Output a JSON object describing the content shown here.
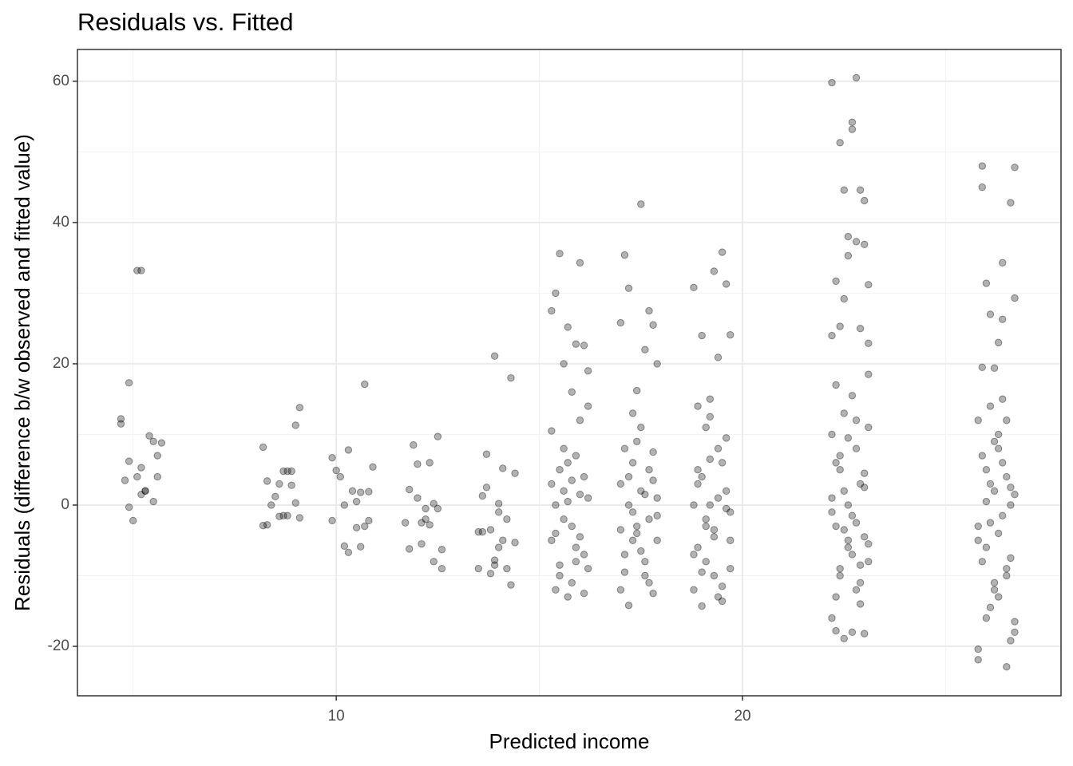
{
  "chart_data": {
    "type": "scatter",
    "title": "Residuals vs. Fitted",
    "x_label": "Predicted income",
    "y_label": "Residuals (difference b/w observed and fitted value)",
    "xlim": [
      3.63,
      27.84
    ],
    "ylim": [
      -27.0,
      64.5
    ],
    "xticks": [
      10,
      20
    ],
    "yticks": [
      -20,
      0,
      20,
      40,
      60
    ],
    "minor_xgrid": [
      5,
      15,
      25
    ],
    "minor_ygrid": [
      -10,
      10,
      30,
      50
    ],
    "grid": true,
    "color": "#000000",
    "alpha": 0.3,
    "x": [
      4.7,
      4.7,
      4.9,
      5.1,
      5.2,
      5.3,
      5.4,
      5.5,
      5.6,
      5.7,
      4.8,
      4.9,
      5.0,
      5.1,
      5.2,
      5.3,
      5.5,
      5.6,
      5.2,
      4.9,
      8.2,
      8.3,
      8.3,
      8.5,
      8.6,
      8.7,
      8.8,
      8.9,
      9.0,
      9.1,
      8.2,
      8.4,
      8.6,
      8.8,
      9.0,
      9.1,
      8.7,
      8.9,
      9.9,
      10.0,
      10.1,
      10.3,
      10.4,
      10.5,
      10.6,
      10.7,
      10.8,
      10.9,
      9.9,
      10.2,
      10.3,
      10.5,
      10.6,
      10.8,
      10.2,
      10.7,
      11.7,
      11.8,
      11.9,
      12.0,
      12.1,
      12.2,
      12.3,
      12.4,
      12.5,
      12.6,
      11.8,
      12.0,
      12.2,
      12.3,
      12.5,
      12.6,
      12.1,
      12.4,
      13.5,
      13.6,
      13.7,
      13.8,
      13.9,
      14.0,
      14.1,
      14.2,
      14.3,
      14.4,
      13.6,
      13.8,
      13.9,
      14.0,
      14.2,
      14.3,
      13.7,
      14.1,
      14.4,
      13.5,
      14.0,
      13.9,
      15.3,
      15.4,
      15.5,
      15.6,
      15.7,
      15.8,
      15.9,
      16.0,
      16.1,
      16.2,
      15.3,
      15.4,
      15.5,
      15.6,
      15.7,
      15.8,
      15.9,
      16.0,
      16.1,
      16.2,
      15.3,
      15.4,
      15.5,
      15.6,
      15.7,
      15.8,
      15.9,
      16.0,
      16.1,
      16.2,
      15.3,
      15.4,
      15.5,
      15.6,
      15.7,
      15.8,
      15.9,
      16.0,
      16.1,
      16.2,
      17.0,
      17.1,
      17.2,
      17.3,
      17.4,
      17.5,
      17.6,
      17.7,
      17.8,
      17.9,
      17.0,
      17.1,
      17.2,
      17.3,
      17.4,
      17.5,
      17.6,
      17.7,
      17.8,
      17.9,
      17.0,
      17.1,
      17.2,
      17.3,
      17.4,
      17.5,
      17.6,
      17.7,
      17.8,
      17.9,
      17.0,
      17.1,
      17.2,
      17.3,
      17.4,
      17.5,
      17.6,
      17.7,
      17.8,
      17.9,
      18.8,
      18.9,
      19.0,
      19.1,
      19.2,
      19.3,
      19.4,
      19.5,
      19.6,
      19.7,
      18.8,
      18.9,
      19.0,
      19.1,
      19.2,
      19.3,
      19.4,
      19.5,
      19.6,
      19.7,
      18.8,
      18.9,
      19.0,
      19.1,
      19.2,
      19.3,
      19.4,
      19.5,
      19.6,
      19.7,
      18.8,
      18.9,
      19.0,
      19.1,
      19.2,
      19.3,
      19.4,
      19.5,
      19.6,
      19.7,
      22.2,
      22.3,
      22.4,
      22.5,
      22.6,
      22.7,
      22.8,
      22.9,
      23.0,
      23.1,
      22.2,
      22.3,
      22.4,
      22.5,
      22.6,
      22.7,
      22.8,
      22.9,
      23.0,
      23.1,
      22.2,
      22.3,
      22.4,
      22.5,
      22.6,
      22.7,
      22.8,
      22.9,
      23.0,
      23.1,
      22.2,
      22.3,
      22.4,
      22.5,
      22.6,
      22.7,
      22.8,
      22.9,
      23.0,
      23.1,
      22.2,
      22.3,
      22.4,
      22.5,
      22.6,
      22.7,
      22.8,
      22.9,
      23.0,
      23.1,
      22.2,
      22.3,
      22.4,
      22.5,
      22.6,
      22.7,
      22.8,
      22.9,
      23.0,
      23.1,
      25.8,
      25.9,
      26.0,
      26.1,
      26.2,
      26.3,
      26.4,
      26.5,
      26.6,
      26.7,
      25.8,
      25.9,
      26.0,
      26.1,
      26.2,
      26.3,
      26.4,
      26.5,
      26.6,
      26.7,
      25.8,
      25.9,
      26.0,
      26.1,
      26.2,
      26.3,
      26.4,
      26.5,
      26.6,
      26.7,
      25.8,
      25.9,
      26.0,
      26.1,
      26.2,
      26.3,
      26.4,
      26.5,
      26.6,
      26.7,
      25.8,
      25.9,
      26.0,
      26.1,
      26.2,
      26.3,
      26.4,
      26.5,
      26.6,
      26.7
    ],
    "values": [
      12.2,
      11.5,
      17.3,
      33.2,
      5.3,
      2.0,
      9.8,
      9.0,
      7.0,
      8.8,
      3.5,
      6.2,
      -2.2,
      4.0,
      1.5,
      2.0,
      0.5,
      4.0,
      33.2,
      -0.3,
      8.2,
      3.4,
      -2.8,
      1.2,
      -1.6,
      4.8,
      4.8,
      2.8,
      11.3,
      13.8,
      -2.9,
      0.0,
      3.0,
      -1.5,
      0.3,
      -1.8,
      -1.5,
      4.8,
      6.7,
      4.9,
      4.0,
      7.8,
      2.0,
      -3.2,
      1.8,
      17.1,
      -2.2,
      5.4,
      -2.2,
      -5.8,
      -6.7,
      0.5,
      -5.9,
      1.9,
      0.0,
      -3.0,
      -2.5,
      2.2,
      8.5,
      5.8,
      -5.5,
      -0.5,
      6.0,
      0.2,
      9.7,
      -6.3,
      -6.2,
      1.0,
      -2.0,
      -2.8,
      -0.5,
      -9.0,
      -2.5,
      -8.0,
      -9.0,
      1.3,
      7.2,
      -3.5,
      21.1,
      0.2,
      5.2,
      -2.0,
      18.0,
      4.5,
      -3.8,
      -9.7,
      -7.8,
      -1.0,
      -9.0,
      -11.3,
      2.5,
      -5.0,
      -5.3,
      -3.8,
      -6.0,
      -8.5,
      27.5,
      30.0,
      35.6,
      20.0,
      25.2,
      16.0,
      22.8,
      34.3,
      22.6,
      19.0,
      10.5,
      -12.0,
      5.0,
      8.0,
      -13.0,
      3.5,
      -8.0,
      12.0,
      -12.5,
      1.0,
      -5.0,
      0.0,
      -10.0,
      2.0,
      6.0,
      -3.0,
      -6.0,
      1.5,
      4.0,
      -9.0,
      3.0,
      -4.0,
      -8.5,
      -2.0,
      0.5,
      -11.0,
      7.0,
      -4.5,
      -7.0,
      14.0,
      25.8,
      35.4,
      30.7,
      13.0,
      16.2,
      42.6,
      22.0,
      27.5,
      25.5,
      20.0,
      -12.0,
      8.0,
      -14.2,
      -5.0,
      -3.0,
      11.0,
      -10.0,
      5.0,
      -12.5,
      -1.5,
      3.0,
      -7.0,
      0.0,
      6.0,
      -4.0,
      2.0,
      -8.0,
      -2.0,
      7.5,
      1.0,
      -3.5,
      -9.5,
      4.0,
      -1.0,
      9.0,
      -6.5,
      1.5,
      -11.0,
      3.5,
      -5.0,
      30.8,
      14.0,
      24.0,
      11.0,
      15.0,
      33.1,
      20.9,
      35.8,
      31.3,
      24.1,
      -12.0,
      5.0,
      -14.3,
      -3.0,
      0.0,
      -10.0,
      8.0,
      -13.6,
      2.0,
      -5.0,
      -7.0,
      3.0,
      -9.5,
      -2.0,
      6.5,
      -4.5,
      1.0,
      -11.5,
      9.5,
      -1.0,
      0.0,
      -6.0,
      4.0,
      -8.0,
      12.5,
      -3.5,
      -13.0,
      6.0,
      -0.5,
      -9.0,
      59.8,
      31.7,
      51.3,
      44.6,
      35.3,
      54.2,
      60.5,
      44.6,
      43.1,
      31.2,
      24.0,
      17.0,
      25.3,
      29.2,
      38.0,
      53.2,
      37.3,
      25.0,
      36.9,
      22.9,
      -16.0,
      -17.8,
      -10.0,
      -18.9,
      -5.0,
      -18.0,
      -12.0,
      -14.0,
      -18.2,
      -8.0,
      10.0,
      -3.0,
      5.0,
      13.0,
      0.0,
      -7.0,
      8.0,
      3.0,
      -4.5,
      11.0,
      -1.0,
      6.0,
      -9.0,
      2.0,
      -6.0,
      15.5,
      -2.5,
      -11.0,
      4.5,
      18.5,
      1.0,
      -13.0,
      7.0,
      -3.5,
      9.5,
      -1.5,
      12.0,
      -8.5,
      2.5,
      -5.5,
      -21.9,
      48.0,
      31.4,
      27.0,
      19.4,
      23.0,
      34.3,
      12.0,
      42.8,
      47.8,
      -20.4,
      45.0,
      -16.0,
      14.0,
      -12.0,
      8.0,
      26.3,
      -22.9,
      -19.2,
      29.3,
      12.0,
      -8.0,
      5.0,
      -14.5,
      2.0,
      -4.0,
      15.0,
      -10.0,
      0.0,
      -18.0,
      -3.0,
      7.0,
      -6.0,
      3.0,
      -11.0,
      10.0,
      -1.5,
      4.0,
      -7.5,
      1.5,
      -5.0,
      19.5,
      0.5,
      -2.5,
      9.0,
      -13.0,
      6.0,
      -9.0,
      2.5,
      -16.5
    ]
  }
}
